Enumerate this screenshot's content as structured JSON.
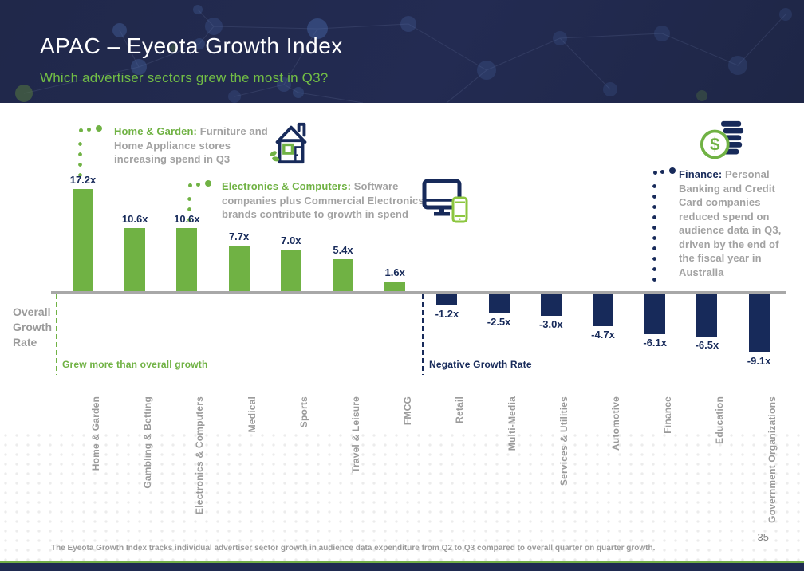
{
  "header": {
    "title": "APAC – Eyeota Growth Index",
    "subtitle": "Which advertiser sectors grew the most in Q3?"
  },
  "annotations": {
    "home_garden": {
      "label": "Home & Garden:",
      "text": " Furniture and Home Appliance stores increasing spend in Q3",
      "icon": "house-icon"
    },
    "electronics": {
      "label": "Electronics & Computers:",
      "text": " Software companies plus Commercial Electronics brands contribute to growth in spend",
      "icon": "monitor-phone-icon"
    },
    "finance": {
      "label": "Finance:",
      "text": " Personal Banking and Credit Card companies reduced spend on audience data in Q3, driven by the end of the fiscal year in Australia",
      "icon": "dollar-coins-icon"
    }
  },
  "chart_data": {
    "type": "bar",
    "categories": [
      "Home & Garden",
      "Gambling & Betting",
      "Electronics & Computers",
      "Medical",
      "Sports",
      "Travel & Leisure",
      "FMCG",
      "Retail",
      "Multi-Media",
      "Services & Utilities",
      "Automotive",
      "Finance",
      "Education",
      "Government Organizations"
    ],
    "values": [
      17.2,
      10.6,
      10.6,
      7.7,
      7.0,
      5.4,
      1.6,
      -1.2,
      -2.5,
      -3.0,
      -4.7,
      -6.1,
      -6.5,
      -9.1
    ],
    "value_labels": [
      "17.2x",
      "10.6x",
      "10.6x",
      "7.7x",
      "7.0x",
      "5.4x",
      "1.6x",
      "-1.2x",
      "-2.5x",
      "-3.0x",
      "-4.7x",
      "-6.1x",
      "-6.5x",
      "-9.1x"
    ],
    "title": "APAC – Eyeota Growth Index",
    "xlabel": "",
    "ylabel": "",
    "ylim": [
      -10,
      18
    ],
    "grid": false,
    "baseline_label": "Overall Growth Rate",
    "positive_zone_label": "Grew more than overall growth",
    "negative_zone_label": "Negative Growth Rate",
    "positive_color": "#70B244",
    "negative_color": "#172A5A"
  },
  "footer": {
    "note": "The Eyeota Growth Index tracks individual advertiser sector growth in audience data expenditure from Q2 to Q3 compared to overall quarter on quarter growth.",
    "page_number": "35"
  },
  "colors": {
    "header_navy": "#222A4D",
    "accent_green": "#70B244",
    "accent_navy": "#172A5A",
    "axis_gray": "#A8A8A8",
    "text_gray": "#9B9B9B"
  }
}
